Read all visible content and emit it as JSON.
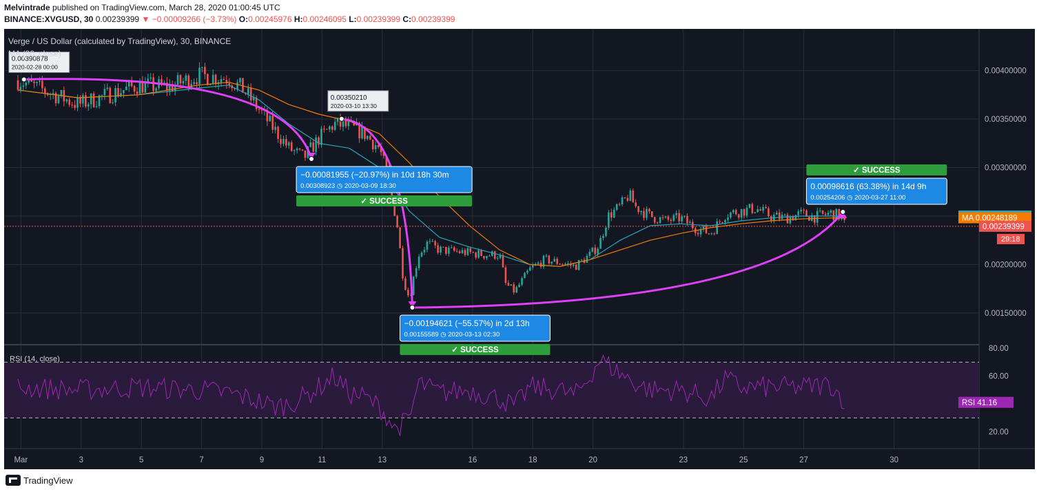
{
  "header": {
    "publisher": "Melvintrade",
    "published_text": "published on TradingView.com, March 28, 2020 01:00:45 UTC",
    "symbol_line": "BINANCE:XVGUSD, 30",
    "last_value": "0.00239399",
    "change": "▼ −0.00009266 (−3.73%)",
    "o_label": "O:",
    "o_value": "0.00245976",
    "h_label": "H:",
    "h_value": "0.00246095",
    "l_label": "L:",
    "l_value": "0.00239399",
    "c_label": "C:",
    "c_value": "0.00239399"
  },
  "footer": {
    "brand": "TradingView",
    "logo_icon": "tradingview-logo-icon"
  },
  "chart_data": [
    {
      "type": "candlestick",
      "title": "Verge / US Dollar (calculated by TradingView), 30, BINANCE",
      "indicator_label": "MA (90, close)",
      "x_ticks": [
        "Mar",
        "3",
        "5",
        "7",
        "9",
        "11",
        "13",
        "16",
        "18",
        "20",
        "23",
        "25",
        "27",
        "30"
      ],
      "y_ticks": [
        "0.00400000",
        "0.00350000",
        "0.00300000",
        "0.00200000",
        "0.00150000"
      ],
      "ylim": [
        0.00118,
        0.00443
      ],
      "price_trajectory": {
        "x_days": [
          0,
          1,
          2,
          3,
          4,
          5,
          6,
          7,
          7.5,
          8,
          8.5,
          9,
          9.5,
          10,
          10.5,
          11,
          11.5,
          12,
          12.3,
          12.6,
          12.8,
          13,
          13.3,
          13.6,
          14,
          15,
          15.5,
          16,
          16.2,
          16.5,
          17,
          17.5,
          18,
          18.5,
          19,
          19.3,
          19.6,
          20,
          20.3,
          20.5,
          21,
          21.5,
          22,
          22.5,
          23,
          23.5,
          24,
          24.5,
          25,
          25.5,
          26,
          26.5,
          27,
          27.3,
          27.5
        ],
        "y_values": [
          0.0039,
          0.00378,
          0.00365,
          0.00375,
          0.00385,
          0.00383,
          0.00395,
          0.00392,
          0.0038,
          0.0036,
          0.0034,
          0.0032,
          0.0031,
          0.0033,
          0.00345,
          0.00342,
          0.00335,
          0.0032,
          0.0029,
          0.0024,
          0.00185,
          0.00165,
          0.0021,
          0.00222,
          0.00215,
          0.00212,
          0.0021,
          0.0021,
          0.0018,
          0.00172,
          0.00195,
          0.00205,
          0.00202,
          0.00198,
          0.0021,
          0.0022,
          0.0025,
          0.0026,
          0.00272,
          0.0026,
          0.0025,
          0.00245,
          0.00248,
          0.00238,
          0.00232,
          0.00252,
          0.00255,
          0.00258,
          0.0025,
          0.00248,
          0.00252,
          0.00249,
          0.00253,
          0.0025,
          0.00239
        ]
      },
      "ma_fast": {
        "x_days": [
          0,
          2,
          4,
          6,
          7,
          8,
          9,
          10,
          11,
          12,
          13,
          14,
          15,
          16,
          17,
          18,
          19,
          20,
          21,
          22,
          23,
          24,
          25,
          26,
          27,
          27.5
        ],
        "y_values": [
          0.0038,
          0.00372,
          0.00375,
          0.00382,
          0.00385,
          0.0037,
          0.00345,
          0.00325,
          0.0032,
          0.003,
          0.00255,
          0.00228,
          0.00218,
          0.0021,
          0.002,
          0.00198,
          0.00205,
          0.00225,
          0.0024,
          0.00242,
          0.0024,
          0.00245,
          0.00248,
          0.0025,
          0.0025,
          0.0025
        ]
      },
      "ma_slow": {
        "x_days": [
          0,
          2,
          4,
          6,
          7,
          8,
          9,
          10,
          11,
          12,
          13,
          14,
          15,
          16,
          17,
          18,
          19,
          20,
          21,
          22,
          23,
          24,
          25,
          26,
          27,
          27.5
        ],
        "y_values": [
          0.0038,
          0.00372,
          0.00375,
          0.00385,
          0.00388,
          0.0038,
          0.00365,
          0.00355,
          0.00348,
          0.00335,
          0.00305,
          0.0027,
          0.0024,
          0.00215,
          0.002,
          0.00198,
          0.00205,
          0.00215,
          0.00225,
          0.00232,
          0.00238,
          0.00242,
          0.00245,
          0.00247,
          0.00248,
          0.00248
        ]
      },
      "last_price": 0.00239399,
      "ma_fast_last": 0.00250015,
      "ma_slow_last": 0.00248189,
      "price_labels": {
        "ma_fast": "MA  0.00250015",
        "ma_slow": "MA  0.00248189",
        "last": "0.00239399",
        "countdown": "29:18"
      },
      "colors": {
        "ma_fast": "#26a6b8",
        "ma_slow": "#f57c00",
        "up": "#26a69a",
        "down": "#ef5350",
        "arrow": "#e040fb",
        "measure_box": "#1e88e5",
        "success": "#2e9e3c"
      },
      "annotations": {
        "point_a": {
          "x_day": 0.2,
          "price": 0.00390878,
          "label": "0.00390878",
          "date": "2020-02-28 00:00"
        },
        "point_b": {
          "x_day": 9.75,
          "price": 0.00308923
        },
        "point_c": {
          "x_day": 10.75,
          "price": 0.0035021,
          "label": "0.00350210",
          "date": "2020-03-10 13:30"
        },
        "point_d": {
          "x_day": 13.1,
          "price": 0.00155589
        },
        "point_e": {
          "x_day": 27.4,
          "price": 0.00254206
        },
        "measures": [
          {
            "line1": "−0.00081955 (−20.97%) in 10d 18h 30m",
            "line2": "0.00308923 ◷ 2020-03-09  18:30",
            "status": "✓ SUCCESS"
          },
          {
            "line1": "−0.00194621 (−55.57%) in 2d 13h",
            "line2": "0.00155589 ◷ 2020-03-13  02:30",
            "status": "✓ SUCCESS"
          },
          {
            "line1": "0.00098616 (63.38%) in 14d 9h",
            "line2": "0.00254206 ◷ 2020-03-27  11:00",
            "status": "✓ SUCCESS"
          }
        ]
      }
    },
    {
      "type": "line",
      "title": "RSI (14, close)",
      "y_ticks": [
        "80.00",
        "60.00",
        "20.00"
      ],
      "ylim": [
        8,
        82
      ],
      "band": [
        30,
        70
      ],
      "x_days": [
        0,
        2,
        4,
        6,
        7,
        8,
        8.5,
        9,
        9.5,
        10,
        10.5,
        11,
        11.5,
        12,
        12.3,
        12.5,
        12.7,
        13,
        13.3,
        13.6,
        14,
        15,
        16,
        16.5,
        17,
        18,
        18.5,
        19,
        19.3,
        19.6,
        20,
        20.5,
        21,
        22,
        23,
        23.5,
        24,
        25,
        26,
        27,
        27.5
      ],
      "values": [
        52,
        50,
        52,
        50,
        48,
        42,
        38,
        40,
        45,
        52,
        60,
        48,
        45,
        38,
        30,
        22,
        25,
        28,
        55,
        52,
        48,
        50,
        44,
        38,
        52,
        50,
        46,
        60,
        72,
        68,
        62,
        55,
        50,
        50,
        44,
        58,
        52,
        52,
        52,
        54,
        41.16
      ],
      "last_label": "RSI  41.16",
      "color": "#9c27b0"
    }
  ]
}
